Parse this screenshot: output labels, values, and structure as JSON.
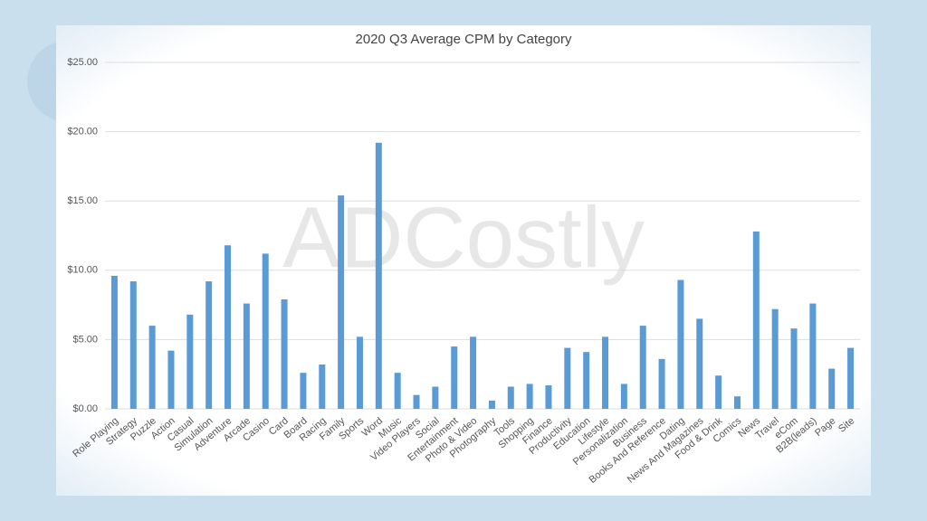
{
  "chart_data": {
    "type": "bar",
    "title": "2020 Q3 Average CPM by Category",
    "watermark": "ADCostly",
    "categories": [
      "Role Playing",
      "Strategy",
      "Puzzle",
      "Action",
      "Casual",
      "Simulation",
      "Adventure",
      "Arcade",
      "Casino",
      "Card",
      "Board",
      "Racing",
      "Family",
      "Sports",
      "Word",
      "Music",
      "Video Players",
      "Social",
      "Entertainment",
      "Photo & Video",
      "Photography",
      "Tools",
      "Shopping",
      "Finance",
      "Productivity",
      "Education",
      "Lifestyle",
      "Personalization",
      "Business",
      "Books And Reference",
      "Dating",
      "News And Magazines",
      "Food & Drink",
      "Comics",
      "News",
      "Travel",
      "eCom",
      "B2B(leads)",
      "Page",
      "Site"
    ],
    "values": [
      9.6,
      9.2,
      6.0,
      4.2,
      6.8,
      9.2,
      11.8,
      7.6,
      11.2,
      7.9,
      2.6,
      3.2,
      15.4,
      5.2,
      19.2,
      2.6,
      1.0,
      1.6,
      4.5,
      5.2,
      0.6,
      1.6,
      1.8,
      1.7,
      4.4,
      4.1,
      5.2,
      1.8,
      6.0,
      3.6,
      9.3,
      6.5,
      2.4,
      0.9,
      12.8,
      7.2,
      5.8,
      7.6,
      2.9,
      4.4
    ],
    "color": "#5b9bd5",
    "ylim": [
      0,
      25
    ],
    "yticks": [
      {
        "value": 0,
        "label": "$0.00"
      },
      {
        "value": 5,
        "label": "$5.00"
      },
      {
        "value": 10,
        "label": "$10.00"
      },
      {
        "value": 15,
        "label": "$15.00"
      },
      {
        "value": 20,
        "label": "$20.00"
      },
      {
        "value": 25,
        "label": "$25.00"
      }
    ],
    "grid": true
  }
}
